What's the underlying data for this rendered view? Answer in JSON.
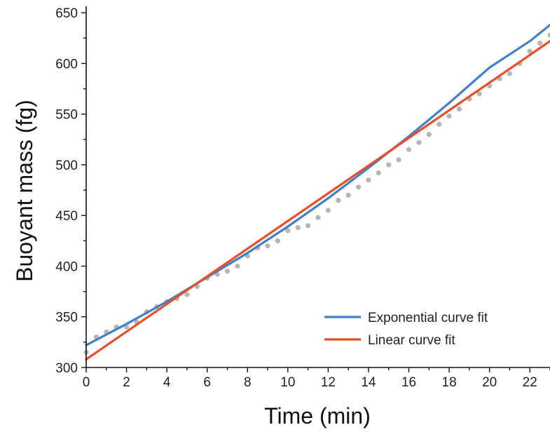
{
  "chart_data": {
    "type": "scatter",
    "title": "",
    "xlabel": "Time (min)",
    "ylabel": "Buoyant mass (fg)",
    "xlim": [
      0,
      23
    ],
    "ylim": [
      300,
      655
    ],
    "x_ticks": [
      0,
      2,
      4,
      6,
      8,
      10,
      12,
      14,
      16,
      18,
      20,
      22
    ],
    "y_ticks": [
      300,
      350,
      400,
      450,
      500,
      550,
      600,
      650
    ],
    "grid": false,
    "legend_position": "bottom-right",
    "colors": {
      "points": "#b4b6b8",
      "exponential": "#3f7fcb",
      "linear": "#ea4e25",
      "axis": "#111111"
    },
    "series": [
      {
        "name": "Exponential curve fit",
        "kind": "line",
        "x": [
          0,
          2,
          4,
          6,
          8,
          10,
          12,
          14,
          16,
          18,
          20,
          22,
          23
        ],
        "y": [
          322,
          343,
          365,
          389,
          413,
          439,
          467,
          497,
          528,
          561,
          596,
          622,
          638
        ]
      },
      {
        "name": "Linear curve fit",
        "kind": "line",
        "x": [
          0,
          23
        ],
        "y": [
          308,
          622
        ]
      },
      {
        "kind": "scatter",
        "x": [
          0,
          0.5,
          1,
          1.5,
          2,
          2.5,
          3,
          3.5,
          4,
          4.5,
          5,
          5.5,
          6,
          6.5,
          7,
          7.5,
          8,
          8.5,
          9,
          9.5,
          10,
          10.5,
          11,
          11.5,
          12,
          12.5,
          13,
          13.5,
          14,
          14.5,
          15,
          15.5,
          16,
          16.5,
          17,
          17.5,
          18,
          18.5,
          19,
          19.5,
          20,
          20.5,
          21,
          21.5,
          22,
          22.5,
          23
        ],
        "y": [
          315,
          330,
          335,
          340,
          340,
          345,
          355,
          360,
          365,
          368,
          372,
          380,
          388,
          392,
          395,
          400,
          410,
          418,
          420,
          425,
          435,
          438,
          440,
          448,
          455,
          465,
          470,
          478,
          485,
          492,
          500,
          505,
          515,
          522,
          530,
          540,
          548,
          555,
          565,
          570,
          578,
          585,
          590,
          600,
          612,
          620,
          628
        ]
      }
    ]
  }
}
